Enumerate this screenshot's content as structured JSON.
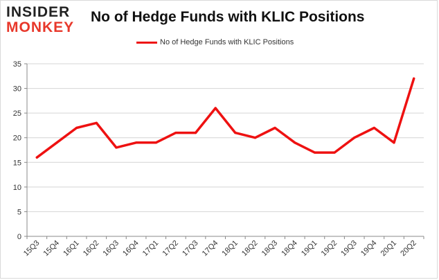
{
  "brand": {
    "line1": "INSIDER",
    "line2": "MONKEY"
  },
  "colors": {
    "series": "#ee1111",
    "grid": "#d4d4d4",
    "axis": "#888888",
    "brand_dark": "#222222",
    "brand_red": "#e8382b"
  },
  "chart_data": {
    "type": "line",
    "title": "No of Hedge Funds with KLIC Positions",
    "xlabel": "",
    "ylabel": "",
    "ylim": [
      0,
      35
    ],
    "yticks": [
      0,
      5,
      10,
      15,
      20,
      25,
      30,
      35
    ],
    "grid": true,
    "legend_position": "top-center",
    "categories": [
      "15Q3",
      "15Q4",
      "16Q1",
      "16Q2",
      "16Q3",
      "16Q4",
      "17Q1",
      "17Q2",
      "17Q3",
      "17Q4",
      "18Q1",
      "18Q2",
      "18Q3",
      "18Q4",
      "19Q1",
      "19Q2",
      "19Q3",
      "19Q4",
      "20Q1",
      "20Q2"
    ],
    "series": [
      {
        "name": "No of Hedge Funds with KLIC Positions",
        "values": [
          16,
          19,
          22,
          23,
          18,
          19,
          19,
          21,
          21,
          26,
          21,
          20,
          22,
          19,
          17,
          17,
          20,
          22,
          19,
          32
        ]
      }
    ]
  }
}
